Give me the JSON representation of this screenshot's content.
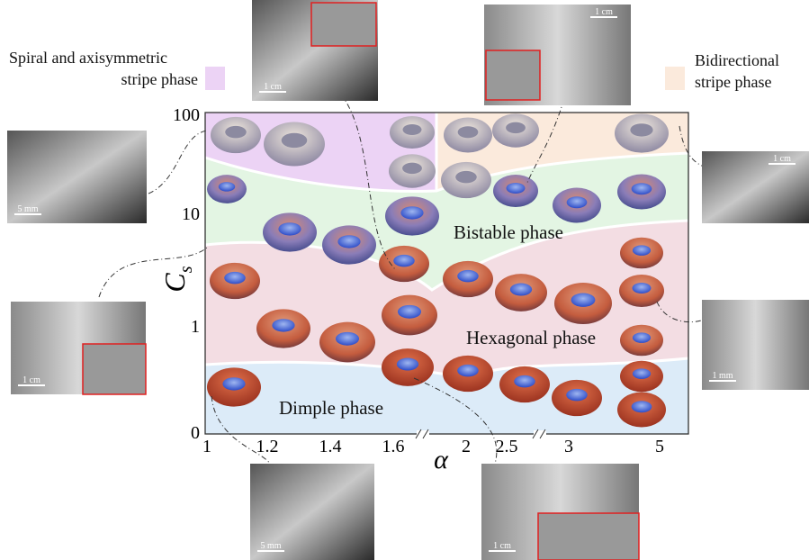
{
  "legend": [
    {
      "lines": [
        "Spiral and axisymmetric",
        "stripe phase"
      ],
      "color": "#ecd3f5"
    },
    {
      "lines": [
        "Bidirectional",
        "stripe phase"
      ],
      "color": "#fbeadc"
    }
  ],
  "axes": {
    "x_label": "α",
    "y_label": {
      "main": "C",
      "sub": "s"
    },
    "x_ticks": [
      "1",
      "1.2",
      "1.4",
      "1.6",
      "2",
      "2.5",
      "3",
      "5"
    ],
    "y_ticks": [
      "100",
      "10",
      "1",
      "0"
    ]
  },
  "phases": [
    {
      "label": "Bistable phase",
      "color": "#e3f5e3"
    },
    {
      "label": "Hexagonal phase",
      "color": "#f3dde3"
    },
    {
      "label": "Dimple phase",
      "color": "#dcebf8"
    }
  ],
  "photos": [
    {
      "scale": "1 cm"
    },
    {
      "scale": "1 cm"
    },
    {
      "scale": "5 mm"
    },
    {
      "scale": "1 cm"
    },
    {
      "scale": "1 cm"
    },
    {
      "scale": "1 mm"
    },
    {
      "scale": "5 mm"
    },
    {
      "scale": "1 cm"
    }
  ]
}
